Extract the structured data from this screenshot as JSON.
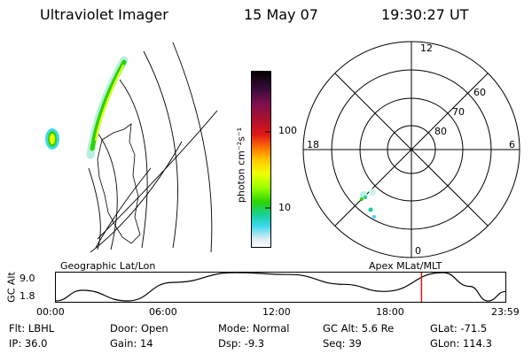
{
  "header": {
    "instrument": "Ultraviolet Imager",
    "date": "15 May 07",
    "time": "19:30:27 UT"
  },
  "geo_panel": {
    "label": "Geographic Lat/Lon"
  },
  "color_bar": {
    "unit_label": "photon cm⁻²s⁻¹",
    "ticks": [
      "100",
      "10"
    ],
    "colors": [
      "#000000",
      "#3a0a3a",
      "#7a1050",
      "#b0102a",
      "#e01818",
      "#ff7a00",
      "#ffc400",
      "#f0ff00",
      "#9cff00",
      "#2cd400",
      "#16d0a0",
      "#40d8f0",
      "#d8ecf4",
      "#ffffff"
    ]
  },
  "polar_panel": {
    "label": "Apex MLat/MLT",
    "mlt_labels": {
      "top": "12",
      "bottom": "0",
      "left": "18",
      "right": "6"
    },
    "lat_labels": [
      "60",
      "70",
      "80"
    ]
  },
  "timeline": {
    "axis_label": "GC Alt",
    "y_ticks": [
      "9.0",
      "1.8"
    ],
    "x_ticks": [
      "00:00",
      "06:00",
      "12:00",
      "18:00",
      "23:59"
    ],
    "current_time_fraction": 0.8128,
    "altitude_curve": [
      [
        0.0,
        1.8
      ],
      [
        0.06,
        4.5
      ],
      [
        0.16,
        1.8
      ],
      [
        0.26,
        6.5
      ],
      [
        0.4,
        9.0
      ],
      [
        0.52,
        8.5
      ],
      [
        0.64,
        6.0
      ],
      [
        0.73,
        4.2
      ],
      [
        0.86,
        9.0
      ],
      [
        0.92,
        5.5
      ],
      [
        0.96,
        1.8
      ],
      [
        1.0,
        4.2
      ]
    ]
  },
  "footer": {
    "flt": "Flt: LBHL",
    "ip": "IP: 36.0",
    "door": "Door: Open",
    "gain": "Gain: 14",
    "mode": "Mode: Normal",
    "dsp": "Dsp:   -9.3",
    "gc_alt": "GC Alt: 5.6 Re",
    "seq": "Seq: 39",
    "glat": "GLat: -71.5",
    "glon": "GLon: 114.3"
  }
}
